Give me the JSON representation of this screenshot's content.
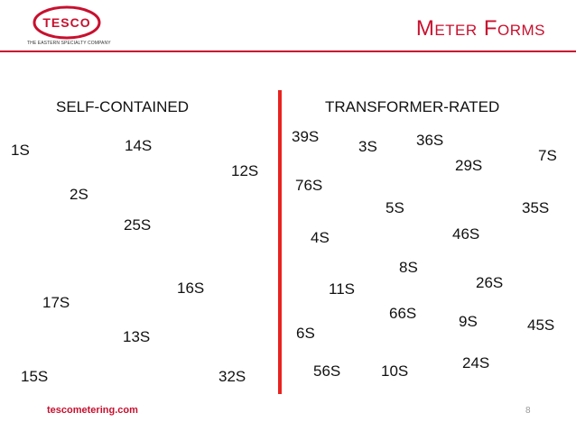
{
  "header": {
    "logo_text": "TESCO",
    "logo_tagline": "THE EASTERN SPECIALTY COMPANY",
    "title": "Meter Forms",
    "colors": {
      "brand_red": "#c8102e",
      "divider_red": "#e8231f"
    }
  },
  "columns": {
    "left_heading": "SELF-CONTAINED",
    "right_heading": "TRANSFORMER-RATED"
  },
  "self_contained_forms": [
    "1S",
    "14S",
    "12S",
    "2S",
    "25S",
    "16S",
    "17S",
    "13S",
    "15S",
    "32S"
  ],
  "transformer_rated_forms": [
    "39S",
    "3S",
    "36S",
    "7S",
    "29S",
    "76S",
    "5S",
    "35S",
    "4S",
    "46S",
    "8S",
    "26S",
    "11S",
    "66S",
    "9S",
    "45S",
    "6S",
    "24S",
    "56S",
    "10S"
  ],
  "footer": {
    "website": "tescometering.com",
    "page_number": "8"
  }
}
